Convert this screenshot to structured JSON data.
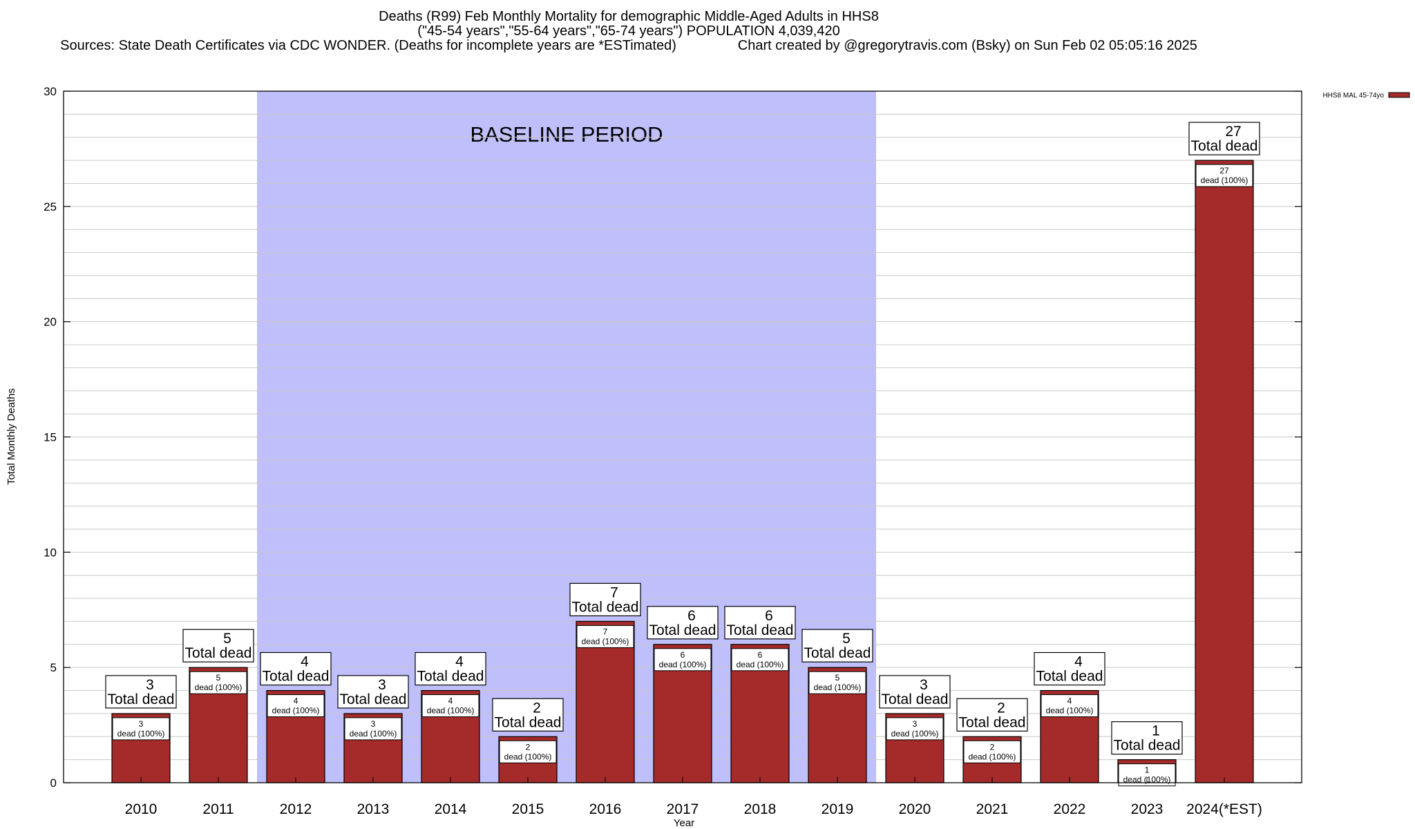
{
  "chart_data": {
    "type": "bar",
    "title_lines": [
      "Deaths (R99) Feb Monthly Mortality for demographic Middle-Aged Adults in HHS8",
      "(\"45-54 years\",\"55-64 years\",\"65-74 years\") POPULATION 4,039,420",
      "Sources: State Death Certificates via CDC WONDER. (Deaths for incomplete years are *ESTimated)                Chart created by @gregorytravis.com (Bsky) on Sun Feb 02 05:05:16 2025"
    ],
    "xlabel": "Year",
    "ylabel": "Total Monthly Deaths",
    "ylim": [
      0,
      30
    ],
    "yticks": [
      0,
      5,
      10,
      15,
      20,
      25,
      30
    ],
    "categories": [
      "2010",
      "2011",
      "2012",
      "2013",
      "2014",
      "2015",
      "2016",
      "2017",
      "2018",
      "2019",
      "2020",
      "2021",
      "2022",
      "2023",
      "2024(*EST)"
    ],
    "series": [
      {
        "name": "HHS8 MAL 45-74yo",
        "color": "#a52a2a",
        "values": [
          3,
          5,
          4,
          3,
          4,
          2,
          7,
          6,
          6,
          5,
          3,
          2,
          4,
          1,
          27
        ]
      }
    ],
    "total_label_suffix": "Total dead",
    "segment_label_suffix": "dead (100%)",
    "baseline": {
      "label": "BASELINE PERIOD",
      "from": "2012",
      "to": "2019",
      "color": "#bfbffb"
    },
    "grid": "horizontal",
    "legend_position": "top-right"
  }
}
